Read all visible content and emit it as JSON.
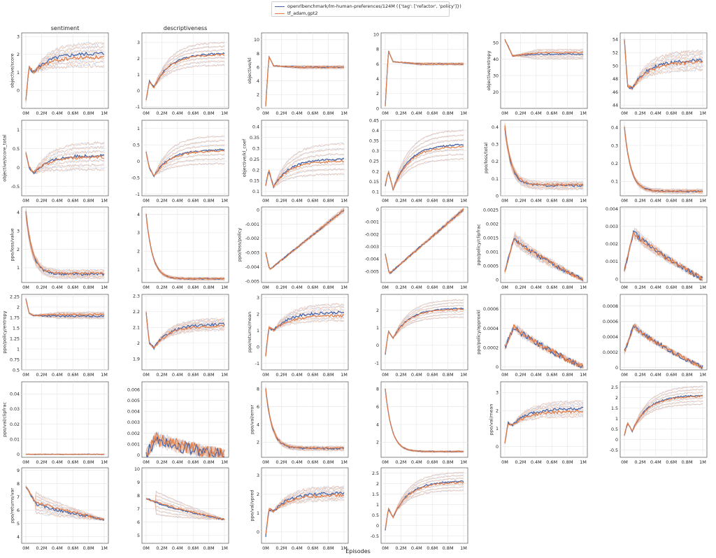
{
  "legend": [
    {
      "label": "openrlbenchmark/lm-human-preferences/124M ({'tag': ['refactor', 'policy']})",
      "color": "#4062a8"
    },
    {
      "label": "tf_adam,gpt2",
      "color": "#e07b47"
    }
  ],
  "column_titles": [
    "sentiment",
    "descriptiveness",
    "",
    "",
    "",
    ""
  ],
  "x_axis": {
    "label": "Episodes",
    "ticks": [
      "0M",
      "0.2M",
      "0.4M",
      "0.6M",
      "0.8M",
      "1M"
    ],
    "range": [
      0,
      1000000
    ]
  },
  "colors": {
    "series1": "#4062a8",
    "series2": "#e07b47",
    "series1_faint": "#aec3e6",
    "series2_faint": "#f2b794"
  },
  "chart_data": [
    {
      "type": "line",
      "ylabel": "objective/score",
      "yticks": [
        0,
        1,
        2,
        3
      ],
      "ylim": [
        -1,
        3.2
      ],
      "shape": "rise",
      "start": -0.6,
      "peak": 1.3,
      "dip": 1.0,
      "end": 2.0,
      "spread": 0.9,
      "noise": 0.1,
      "series": [
        {
          "name": "openrlbenchmark/lm-human-preferences/124M",
          "final": 2.05
        },
        {
          "name": "tf_adam,gpt2",
          "final": 1.85
        }
      ]
    },
    {
      "type": "line",
      "ylabel": "",
      "yticks": [
        -1,
        0,
        1,
        2,
        3
      ],
      "ylim": [
        -1.1,
        3.6
      ],
      "shape": "rise",
      "start": -0.6,
      "peak": 0.6,
      "dip": 0.2,
      "end": 2.3,
      "spread": 1.0,
      "noise": 0.06,
      "series": [
        {
          "name": "openrlbenchmark/lm-human-preferences/124M",
          "final": 2.3
        },
        {
          "name": "tf_adam,gpt2",
          "final": 2.25
        }
      ]
    },
    {
      "type": "line",
      "ylabel": "objective/kl",
      "yticks": [
        0,
        2,
        4,
        6,
        8,
        10
      ],
      "ylim": [
        0,
        11
      ],
      "shape": "spike",
      "start": 0.3,
      "peak": 7.6,
      "dip": 6.2,
      "end": 6.0,
      "spread": 0.3,
      "noise": 0.08,
      "series": [
        {
          "name": "openrlbenchmark/lm-human-preferences/124M",
          "final": 6.0
        },
        {
          "name": "tf_adam,gpt2",
          "final": 6.0
        }
      ]
    },
    {
      "type": "line",
      "ylabel": "",
      "yticks": [
        0,
        2,
        4,
        6,
        8,
        10
      ],
      "ylim": [
        0,
        10.2
      ],
      "shape": "spike",
      "start": 0.3,
      "peak": 7.8,
      "dip": 6.3,
      "end": 6.0,
      "spread": 0.2,
      "noise": 0.06,
      "series": [
        {
          "name": "openrlbenchmark/lm-human-preferences/124M",
          "final": 6.0
        },
        {
          "name": "tf_adam,gpt2",
          "final": 6.0
        }
      ]
    },
    {
      "type": "line",
      "ylabel": "objective/entropy",
      "yticks": [
        20,
        30,
        40,
        50
      ],
      "ylim": [
        10,
        56
      ],
      "shape": "spike",
      "start": 52,
      "peak": 48,
      "dip": 42,
      "end": 43,
      "spread": 4,
      "noise": 0.4,
      "series": [
        {
          "name": "openrlbenchmark/lm-human-preferences/124M",
          "final": 43
        },
        {
          "name": "tf_adam,gpt2",
          "final": 44
        }
      ]
    },
    {
      "type": "line",
      "ylabel": "",
      "yticks": [
        44,
        46,
        48,
        50,
        52,
        54
      ],
      "ylim": [
        43.5,
        55
      ],
      "shape": "rise",
      "start": 54,
      "peak": 47,
      "dip": 46.5,
      "end": 50.8,
      "spread": 2,
      "noise": 0.25,
      "series": [
        {
          "name": "openrlbenchmark/lm-human-preferences/124M",
          "final": 50.8
        },
        {
          "name": "tf_adam,gpt2",
          "final": 50.5
        }
      ]
    },
    {
      "type": "line",
      "ylabel": "objective/score_total",
      "yticks": [
        -0.5,
        0.0,
        0.5,
        1.0
      ],
      "ylim": [
        -0.75,
        1.25
      ],
      "shape": "rise",
      "start": 0.4,
      "peak": 0.0,
      "dip": -0.15,
      "end": 0.3,
      "spread": 0.5,
      "noise": 0.04,
      "series": [
        {
          "name": "openrlbenchmark/lm-human-preferences/124M",
          "final": 0.32
        },
        {
          "name": "tf_adam,gpt2",
          "final": 0.28
        }
      ]
    },
    {
      "type": "line",
      "ylabel": "",
      "yticks": [
        -1.0,
        -0.5,
        0.0,
        0.5,
        1.0
      ],
      "ylim": [
        -1.05,
        1.25
      ],
      "shape": "rise",
      "start": 0.3,
      "peak": -0.2,
      "dip": -0.45,
      "end": 0.35,
      "spread": 0.6,
      "noise": 0.03,
      "series": [
        {
          "name": "openrlbenchmark/lm-human-preferences/124M",
          "final": 0.35
        },
        {
          "name": "tf_adam,gpt2",
          "final": 0.32
        }
      ]
    },
    {
      "type": "line",
      "ylabel": "objective/kl_coef",
      "yticks": [
        0.1,
        0.15,
        0.2,
        0.25,
        0.3,
        0.35,
        0.4
      ],
      "ylim": [
        0.08,
        0.43
      ],
      "shape": "rise",
      "start": 0.13,
      "peak": 0.2,
      "dip": 0.12,
      "end": 0.25,
      "spread": 0.1,
      "noise": 0.005,
      "series": [
        {
          "name": "openrlbenchmark/lm-human-preferences/124M",
          "final": 0.25
        },
        {
          "name": "tf_adam,gpt2",
          "final": 0.24
        }
      ]
    },
    {
      "type": "line",
      "ylabel": "",
      "yticks": [
        0.1,
        0.15,
        0.2,
        0.25,
        0.3,
        0.35,
        0.4,
        0.45
      ],
      "ylim": [
        0.08,
        0.45
      ],
      "shape": "rise",
      "start": 0.13,
      "peak": 0.2,
      "dip": 0.11,
      "end": 0.33,
      "spread": 0.1,
      "noise": 0.004,
      "series": [
        {
          "name": "openrlbenchmark/lm-human-preferences/124M",
          "final": 0.33
        },
        {
          "name": "tf_adam,gpt2",
          "final": 0.32
        }
      ]
    },
    {
      "type": "line",
      "ylabel": "ppo/loss/total",
      "yticks": [
        0.0,
        0.1,
        0.2,
        0.3,
        0.4
      ],
      "ylim": [
        0,
        0.44
      ],
      "shape": "decay",
      "start": 0.4,
      "peak": 0.4,
      "dip": 0.4,
      "end": 0.06,
      "spread": 0.03,
      "noise": 0.006,
      "series": [
        {
          "name": "openrlbenchmark/lm-human-preferences/124M",
          "final": 0.06
        },
        {
          "name": "tf_adam,gpt2",
          "final": 0.065
        }
      ]
    },
    {
      "type": "line",
      "ylabel": "",
      "yticks": [
        0.1,
        0.2,
        0.3,
        0.4
      ],
      "ylim": [
        0.02,
        0.44
      ],
      "shape": "decay",
      "start": 0.4,
      "peak": 0.4,
      "dip": 0.4,
      "end": 0.045,
      "spread": 0.015,
      "noise": 0.004,
      "series": [
        {
          "name": "openrlbenchmark/lm-human-preferences/124M",
          "final": 0.045
        },
        {
          "name": "tf_adam,gpt2",
          "final": 0.045
        }
      ]
    },
    {
      "type": "line",
      "ylabel": "ppo/loss/value",
      "yticks": [
        1,
        2,
        3,
        4
      ],
      "ylim": [
        0.2,
        4.3
      ],
      "shape": "decay",
      "start": 4.0,
      "peak": 4.0,
      "dip": 4.0,
      "end": 0.65,
      "spread": 0.3,
      "noise": 0.06,
      "series": [
        {
          "name": "openrlbenchmark/lm-human-preferences/124M",
          "final": 0.65
        },
        {
          "name": "tf_adam,gpt2",
          "final": 0.7
        }
      ]
    },
    {
      "type": "line",
      "ylabel": "",
      "yticks": [
        1,
        2,
        3,
        4
      ],
      "ylim": [
        0.3,
        4.4
      ],
      "shape": "decay",
      "start": 4.0,
      "peak": 4.0,
      "dip": 4.0,
      "end": 0.5,
      "spread": 0.1,
      "noise": 0.03,
      "series": [
        {
          "name": "openrlbenchmark/lm-human-preferences/124M",
          "final": 0.5
        },
        {
          "name": "tf_adam,gpt2",
          "final": 0.5
        }
      ]
    },
    {
      "type": "line",
      "ylabel": "ppo/loss/policy",
      "yticks": [
        -0.005,
        -0.004,
        -0.003,
        -0.002,
        -0.001,
        0.0
      ],
      "ylim": [
        -0.0051,
        0.0002
      ],
      "shape": "linear",
      "start": -0.003,
      "peak": -0.0035,
      "dip": -0.0042,
      "end": 0.0,
      "spread": 0.0002,
      "noise": 6e-05,
      "series": [
        {
          "name": "openrlbenchmark/lm-human-preferences/124M",
          "final": 0.0
        },
        {
          "name": "tf_adam,gpt2",
          "final": 0.0
        }
      ]
    },
    {
      "type": "line",
      "ylabel": "",
      "yticks": [
        -0.005,
        -0.004,
        -0.003,
        -0.002,
        -0.001,
        0.0
      ],
      "ylim": [
        -0.0059,
        0.0002
      ],
      "shape": "linear",
      "start": -0.0036,
      "peak": -0.004,
      "dip": -0.0052,
      "end": 0.0,
      "spread": 0.0002,
      "noise": 8e-05,
      "series": [
        {
          "name": "openrlbenchmark/lm-human-preferences/124M",
          "final": 0.0
        },
        {
          "name": "tf_adam,gpt2",
          "final": 0.0
        }
      ]
    },
    {
      "type": "line",
      "ylabel": "ppo/policy/clipfrac",
      "yticks": [
        0.0,
        0.0005,
        0.001,
        0.0015,
        0.002,
        0.0025
      ],
      "ylim": [
        -0.0001,
        0.0026
      ],
      "shape": "hump",
      "start": 0.0003,
      "peak": 0.0015,
      "dip": 0.001,
      "end": 0.0,
      "spread": 0.0003,
      "noise": 8e-05,
      "series": [
        {
          "name": "openrlbenchmark/lm-human-preferences/124M",
          "final": 0.0
        },
        {
          "name": "tf_adam,gpt2",
          "final": 0.0
        }
      ]
    },
    {
      "type": "line",
      "ylabel": "",
      "yticks": [
        0.0,
        0.001,
        0.002,
        0.003,
        0.004
      ],
      "ylim": [
        -0.0002,
        0.0041
      ],
      "shape": "hump",
      "start": 0.0005,
      "peak": 0.0027,
      "dip": 0.002,
      "end": 0.0,
      "spread": 0.0004,
      "noise": 0.00015,
      "series": [
        {
          "name": "openrlbenchmark/lm-human-preferences/124M",
          "final": 0.0
        },
        {
          "name": "tf_adam,gpt2",
          "final": 0.0
        }
      ]
    },
    {
      "type": "line",
      "ylabel": "ppo/policy/entropy",
      "yticks": [
        0.5,
        0.75,
        1.0,
        1.25,
        1.5,
        1.75,
        2.0,
        2.25
      ],
      "ylim": [
        0.5,
        2.3
      ],
      "shape": "spike",
      "start": 2.2,
      "peak": 1.85,
      "dip": 1.8,
      "end": 1.8,
      "spread": 0.1,
      "noise": 0.02,
      "series": [
        {
          "name": "openrlbenchmark/lm-human-preferences/124M",
          "final": 1.78
        },
        {
          "name": "tf_adam,gpt2",
          "final": 1.82
        }
      ]
    },
    {
      "type": "line",
      "ylabel": "",
      "yticks": [
        1.9,
        2.0,
        2.1,
        2.2,
        2.3
      ],
      "ylim": [
        1.83,
        2.31
      ],
      "shape": "rise",
      "start": 2.2,
      "peak": 2.0,
      "dip": 1.97,
      "end": 2.12,
      "spread": 0.05,
      "noise": 0.008,
      "series": [
        {
          "name": "openrlbenchmark/lm-human-preferences/124M",
          "final": 2.12
        },
        {
          "name": "tf_adam,gpt2",
          "final": 2.11
        }
      ]
    },
    {
      "type": "line",
      "ylabel": "ppo/returns/mean",
      "yticks": [
        -1,
        0,
        1,
        2,
        3
      ],
      "ylim": [
        -1.4,
        3.2
      ],
      "shape": "rise",
      "start": -0.5,
      "peak": 1.2,
      "dip": 1.0,
      "end": 2.1,
      "spread": 0.7,
      "noise": 0.08,
      "series": [
        {
          "name": "openrlbenchmark/lm-human-preferences/124M",
          "final": 2.1
        },
        {
          "name": "tf_adam,gpt2",
          "final": 1.9
        }
      ]
    },
    {
      "type": "line",
      "ylabel": "",
      "yticks": [
        -1,
        0,
        1,
        2
      ],
      "ylim": [
        -1.4,
        2.9
      ],
      "shape": "rise",
      "start": -0.5,
      "peak": 0.8,
      "dip": 0.4,
      "end": 2.1,
      "spread": 0.7,
      "noise": 0.04,
      "series": [
        {
          "name": "openrlbenchmark/lm-human-preferences/124M",
          "final": 2.1
        },
        {
          "name": "tf_adam,gpt2",
          "final": 2.05
        }
      ]
    },
    {
      "type": "line",
      "ylabel": "ppo/policy/approxkl",
      "yticks": [
        0.0,
        0.0002,
        0.0004,
        0.0006
      ],
      "ylim": [
        -3e-05,
        0.00075
      ],
      "shape": "hump",
      "start": 0.0002,
      "peak": 0.00042,
      "dip": 0.0004,
      "end": 0.0,
      "spread": 4e-05,
      "noise": 3e-05,
      "series": [
        {
          "name": "openrlbenchmark/lm-human-preferences/124M",
          "final": 0.0
        },
        {
          "name": "tf_adam,gpt2",
          "final": 0.0
        }
      ]
    },
    {
      "type": "line",
      "ylabel": "",
      "yticks": [
        0.0,
        0.0002,
        0.0004,
        0.0006,
        0.0008
      ],
      "ylim": [
        -3e-05,
        0.00095
      ],
      "shape": "hump",
      "start": 0.0002,
      "peak": 0.00055,
      "dip": 0.0005,
      "end": 0.0,
      "spread": 4e-05,
      "noise": 3e-05,
      "series": [
        {
          "name": "openrlbenchmark/lm-human-preferences/124M",
          "final": 0.0
        },
        {
          "name": "tf_adam,gpt2",
          "final": 0.0
        }
      ]
    },
    {
      "type": "line",
      "ylabel": "ppo/val/clipfrac",
      "yticks": [
        0.0,
        0.01,
        0.02,
        0.03,
        0.04
      ],
      "ylim": [
        -0.002,
        0.048
      ],
      "shape": "flat",
      "start": 0.0,
      "peak": 0.0,
      "dip": 0.0,
      "end": 0.0,
      "spread": 0.0,
      "noise": 0.0002,
      "series": [
        {
          "name": "openrlbenchmark/lm-human-preferences/124M",
          "final": 0.0
        },
        {
          "name": "tf_adam,gpt2",
          "final": 0.0
        }
      ]
    },
    {
      "type": "line",
      "ylabel": "",
      "yticks": [
        0.0,
        0.001,
        0.002,
        0.003,
        0.004,
        0.005,
        0.006
      ],
      "ylim": [
        -0.0002,
        0.0067
      ],
      "shape": "hump",
      "start": 0.0,
      "peak": 0.0015,
      "dip": 0.001,
      "end": 0.0,
      "spread": 0.0003,
      "noise": 0.0006,
      "series": [
        {
          "name": "openrlbenchmark/lm-human-preferences/124M",
          "final": 0.0
        },
        {
          "name": "tf_adam,gpt2",
          "final": 0.0
        }
      ]
    },
    {
      "type": "line",
      "ylabel": "ppo/val/error",
      "yticks": [
        2,
        4,
        6,
        8
      ],
      "ylim": [
        0.3,
        8.8
      ],
      "shape": "decay",
      "start": 8.0,
      "peak": 8.0,
      "dip": 8.0,
      "end": 1.3,
      "spread": 0.3,
      "noise": 0.1,
      "series": [
        {
          "name": "openrlbenchmark/lm-human-preferences/124M",
          "final": 1.3
        },
        {
          "name": "tf_adam,gpt2",
          "final": 1.35
        }
      ]
    },
    {
      "type": "line",
      "ylabel": "",
      "yticks": [
        2,
        4,
        6,
        8
      ],
      "ylim": [
        0.3,
        8.8
      ],
      "shape": "decay",
      "start": 8.0,
      "peak": 8.0,
      "dip": 8.0,
      "end": 0.95,
      "spread": 0.1,
      "noise": 0.05,
      "series": [
        {
          "name": "openrlbenchmark/lm-human-preferences/124M",
          "final": 0.95
        },
        {
          "name": "tf_adam,gpt2",
          "final": 0.95
        }
      ]
    },
    {
      "type": "line",
      "ylabel": "ppo/val/mean",
      "yticks": [
        0,
        1,
        2,
        3
      ],
      "ylim": [
        -0.6,
        3.6
      ],
      "shape": "rise",
      "start": 0.2,
      "peak": 1.3,
      "dip": 1.2,
      "end": 2.1,
      "spread": 0.6,
      "noise": 0.08,
      "series": [
        {
          "name": "openrlbenchmark/lm-human-preferences/124M",
          "final": 2.1
        },
        {
          "name": "tf_adam,gpt2",
          "final": 1.95
        }
      ]
    },
    {
      "type": "line",
      "ylabel": "",
      "yticks": [
        -0.5,
        0.0,
        0.5,
        1.0,
        1.5,
        2.0,
        2.5
      ],
      "ylim": [
        -0.85,
        2.75
      ],
      "shape": "rise",
      "start": 0.2,
      "peak": 0.8,
      "dip": 0.4,
      "end": 2.1,
      "spread": 0.6,
      "noise": 0.04,
      "series": [
        {
          "name": "openrlbenchmark/lm-human-preferences/124M",
          "final": 2.1
        },
        {
          "name": "tf_adam,gpt2",
          "final": 2.05
        }
      ]
    },
    {
      "type": "line",
      "ylabel": "ppo/returns/var",
      "yticks": [
        4,
        5,
        6,
        7,
        8,
        9
      ],
      "ylim": [
        3.5,
        9.2
      ],
      "shape": "hump",
      "start": 7.8,
      "peak": 6.6,
      "dip": 5.5,
      "end": 5.3,
      "spread": 1.2,
      "noise": 0.1,
      "series": [
        {
          "name": "openrlbenchmark/lm-human-preferences/124M",
          "final": 5.2
        },
        {
          "name": "tf_adam,gpt2",
          "final": 5.4
        }
      ]
    },
    {
      "type": "line",
      "ylabel": "",
      "yticks": [
        5,
        6,
        7,
        8,
        9,
        10
      ],
      "ylim": [
        4.4,
        10.1
      ],
      "shape": "hump",
      "start": 7.8,
      "peak": 7.5,
      "dip": 6.0,
      "end": 6.2,
      "spread": 1.4,
      "noise": 0.06,
      "series": [
        {
          "name": "openrlbenchmark/lm-human-preferences/124M",
          "final": 6.2
        },
        {
          "name": "tf_adam,gpt2",
          "final": 6.3
        }
      ]
    },
    {
      "type": "line",
      "ylabel": "ppo/val/vpred",
      "yticks": [
        0,
        1,
        2,
        3
      ],
      "ylim": [
        -0.6,
        3.4
      ],
      "shape": "rise",
      "start": -0.2,
      "peak": 1.2,
      "dip": 1.1,
      "end": 2.05,
      "spread": 0.5,
      "noise": 0.08,
      "series": [
        {
          "name": "openrlbenchmark/lm-human-preferences/124M",
          "final": 2.05
        },
        {
          "name": "tf_adam,gpt2",
          "final": 1.95
        }
      ]
    },
    {
      "type": "line",
      "ylabel": "",
      "yticks": [
        -0.5,
        0.0,
        0.5,
        1.0,
        1.5,
        2.0,
        2.5
      ],
      "ylim": [
        -0.85,
        2.75
      ],
      "shape": "rise",
      "start": -0.2,
      "peak": 0.8,
      "dip": 0.4,
      "end": 2.1,
      "spread": 0.6,
      "noise": 0.04,
      "series": [
        {
          "name": "openrlbenchmark/lm-human-preferences/124M",
          "final": 2.1
        },
        {
          "name": "tf_adam,gpt2",
          "final": 2.05
        }
      ]
    }
  ]
}
